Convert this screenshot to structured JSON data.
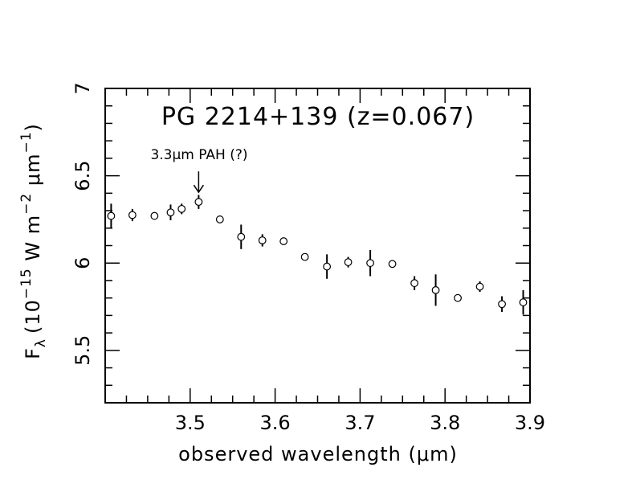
{
  "chart_data": {
    "type": "scatter",
    "title": "PG 2214+139 (z=0.067)",
    "xlabel": "observed wavelength (μm)",
    "ylabel_parts": {
      "F": "F",
      "lambda": "λ",
      "open": "(10",
      "exp1": "−15",
      "mid": " W m",
      "exp2": "−2",
      "mu": " μm",
      "exp3": "−1",
      "close": ")"
    },
    "xlim": [
      3.4,
      3.9
    ],
    "ylim": [
      5.2,
      7.0
    ],
    "xticks": [
      3.5,
      3.6,
      3.7,
      3.8,
      3.9
    ],
    "xtick_labels": [
      "3.5",
      "3.6",
      "3.7",
      "3.8",
      "3.9"
    ],
    "yticks": [
      5.5,
      6.0,
      6.5,
      7.0
    ],
    "ytick_labels": [
      "5.5",
      "6",
      "6.5",
      "7"
    ],
    "annotation": {
      "text": "3.3μm PAH (?)",
      "x": 3.51,
      "y": 6.35
    },
    "points": [
      {
        "x": 3.407,
        "y": 6.27,
        "err": 0.07
      },
      {
        "x": 3.432,
        "y": 6.275,
        "err": 0.035
      },
      {
        "x": 3.458,
        "y": 6.27,
        "err": 0.02
      },
      {
        "x": 3.477,
        "y": 6.29,
        "err": 0.045
      },
      {
        "x": 3.49,
        "y": 6.31,
        "err": 0.03
      },
      {
        "x": 3.51,
        "y": 6.35,
        "err": 0.04
      },
      {
        "x": 3.535,
        "y": 6.25,
        "err": 0.015
      },
      {
        "x": 3.56,
        "y": 6.15,
        "err": 0.07
      },
      {
        "x": 3.585,
        "y": 6.13,
        "err": 0.035
      },
      {
        "x": 3.61,
        "y": 6.125,
        "err": 0.02
      },
      {
        "x": 3.635,
        "y": 6.035,
        "err": 0.02
      },
      {
        "x": 3.661,
        "y": 5.98,
        "err": 0.07
      },
      {
        "x": 3.686,
        "y": 6.005,
        "err": 0.03
      },
      {
        "x": 3.712,
        "y": 6.0,
        "err": 0.075
      },
      {
        "x": 3.738,
        "y": 5.995,
        "err": 0.02
      },
      {
        "x": 3.764,
        "y": 5.885,
        "err": 0.04
      },
      {
        "x": 3.789,
        "y": 5.845,
        "err": 0.09
      },
      {
        "x": 3.815,
        "y": 5.8,
        "err": 0.02
      },
      {
        "x": 3.841,
        "y": 5.865,
        "err": 0.03
      },
      {
        "x": 3.867,
        "y": 5.765,
        "err": 0.045
      },
      {
        "x": 3.892,
        "y": 5.775,
        "err": 0.07
      }
    ]
  }
}
